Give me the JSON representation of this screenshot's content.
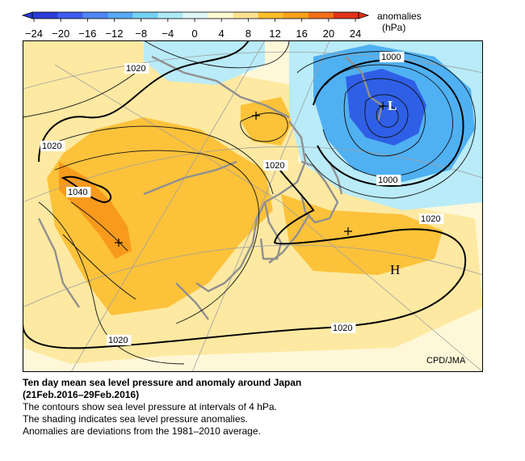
{
  "colorbar": {
    "ticks": [
      "−24",
      "−20",
      "−16",
      "−12",
      "−8",
      "−4",
      "0",
      "4",
      "8",
      "12",
      "16",
      "20",
      "24"
    ],
    "title": "anomalies",
    "unit": "(hPa)",
    "colors": [
      "#2a3ad8",
      "#3d5cf0",
      "#4f86f7",
      "#59a9f8",
      "#74d2f4",
      "#aee9f6",
      "#dff6f6",
      "#fffad2",
      "#fee292",
      "#fcbf2b",
      "#f8a11a",
      "#f46f19",
      "#e0321a"
    ]
  },
  "map": {
    "contour_labels": [
      "1020",
      "1020",
      "1040",
      "1020",
      "1000",
      "1000",
      "1020",
      "1020",
      "1020"
    ],
    "high_label": "H",
    "low_label": "L",
    "credit": "CPD/JMA",
    "colors": {
      "land": "#909090",
      "positive_light": "#fee9a2",
      "positive": "#fcc23a",
      "positive_strong": "#f89a1c",
      "neutral": "#fff8d8",
      "negative_light": "#b9ebf8",
      "negative": "#4fb0f2",
      "negative_strong": "#2f5fe6"
    }
  },
  "caption": {
    "title_line1": "Ten day mean sea level pressure and anomaly around Japan",
    "title_line2": "(21Feb.2016–29Feb.2016)",
    "line3": "The contours show sea level pressure at intervals of 4 hPa.",
    "line4": "The shading indicates sea level pressure anomalies.",
    "line5": "Anomalies are deviations from the 1981–2010 average."
  }
}
